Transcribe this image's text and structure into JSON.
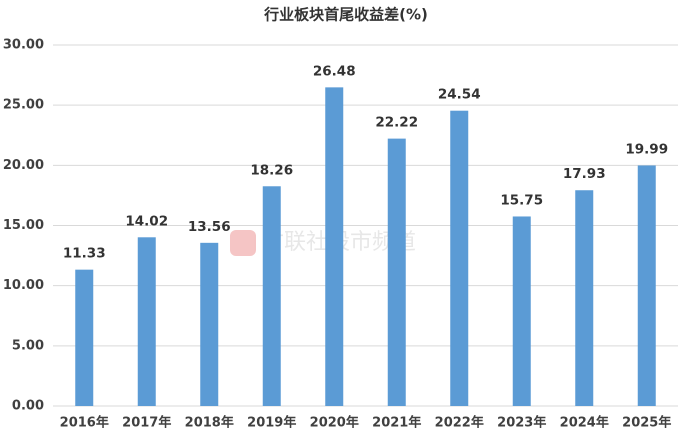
{
  "chart_data": {
    "type": "bar",
    "title": "行业板块首尾收益差(%)",
    "categories": [
      "2016年",
      "2017年",
      "2018年",
      "2019年",
      "2020年",
      "2021年",
      "2022年",
      "2023年",
      "2024年",
      "2025年"
    ],
    "values": [
      11.33,
      14.02,
      13.56,
      18.26,
      26.48,
      22.22,
      24.54,
      15.75,
      17.93,
      19.99
    ],
    "color": "#5b9bd5",
    "ylim": [
      0,
      30
    ],
    "yticks": [
      {
        "value": 0,
        "label": "0.00"
      },
      {
        "value": 5,
        "label": "5.00"
      },
      {
        "value": 10,
        "label": "10.00"
      },
      {
        "value": 15,
        "label": "15.00"
      },
      {
        "value": 20,
        "label": "20.00"
      },
      {
        "value": 25,
        "label": "25.00"
      },
      {
        "value": 30,
        "label": "30.00"
      }
    ],
    "grid": true,
    "watermark": "财联社股市频道"
  }
}
